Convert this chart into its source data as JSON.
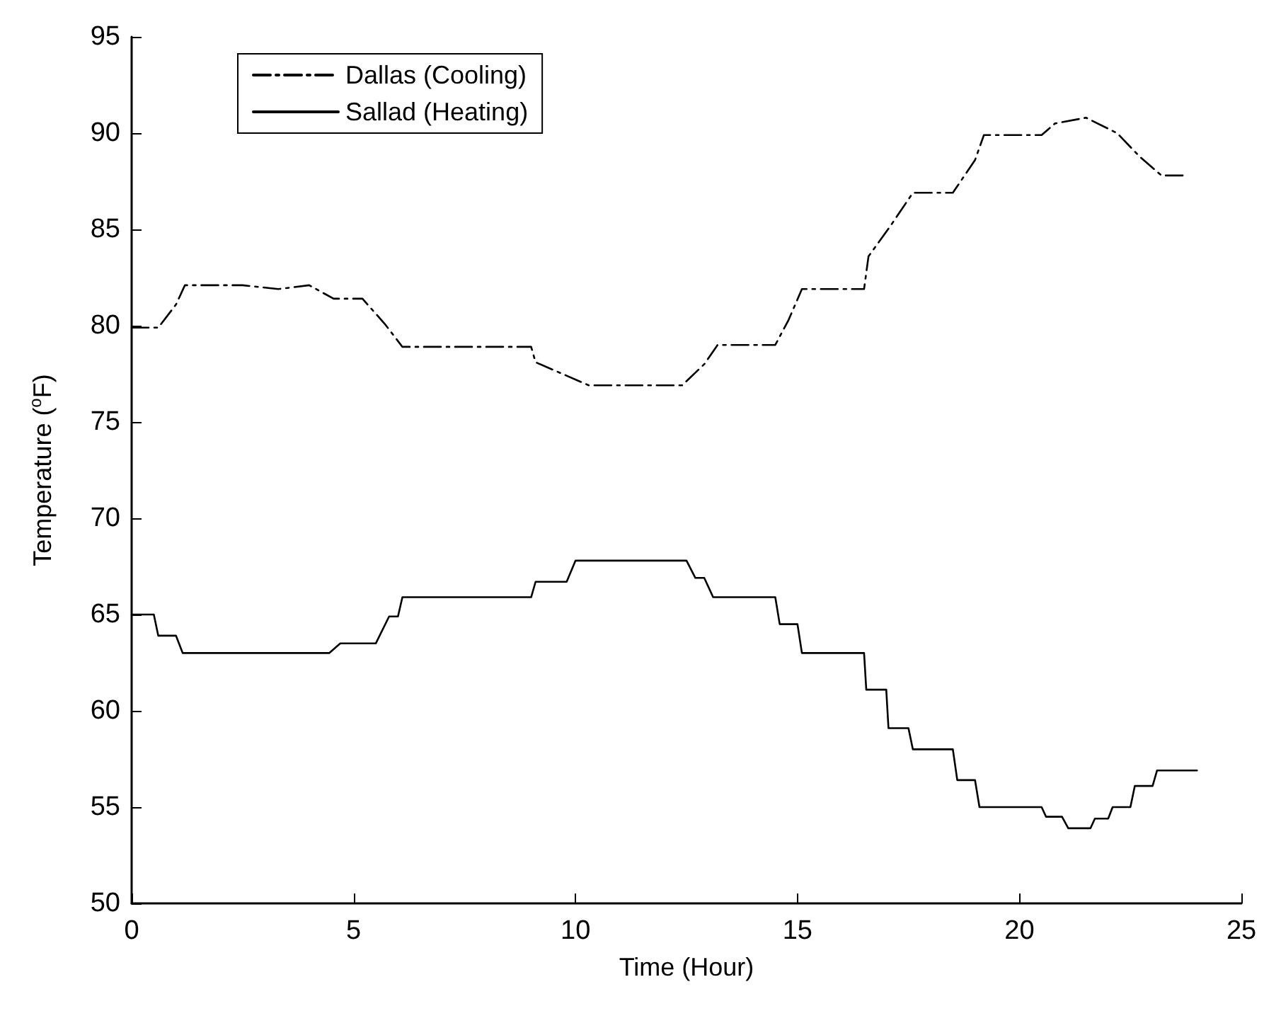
{
  "chart_data": {
    "type": "line",
    "xlabel": "Time (Hour)",
    "ylabel": "Temperature ($^{o}$F)",
    "xlim": [
      0,
      25
    ],
    "xticks": [
      0,
      5,
      10,
      15,
      20,
      25
    ],
    "ylim": [
      50,
      95
    ],
    "yticks": [
      50,
      55,
      60,
      65,
      70,
      75,
      80,
      85,
      90,
      95
    ],
    "legend": "top left",
    "grid": false,
    "marker": "none",
    "series": [
      {
        "name": "Dallas (Cooling)",
        "color": "#000000",
        "line_style": "dashed",
        "x": [
          0,
          0.6,
          1.0,
          1.2,
          2.5,
          3.3,
          4.0,
          4.55,
          5.2,
          5.7,
          6.1,
          7.5,
          9.0,
          9.1,
          9.7,
          10.3,
          11.5,
          12.4,
          12.9,
          13.2,
          14.5,
          14.8,
          15.1,
          16.5,
          16.6,
          17.1,
          17.6,
          18.5,
          19.0,
          19.2,
          20.5,
          20.8,
          21.5,
          22.2,
          22.7,
          23.2,
          23.8
        ],
        "values": [
          79.9,
          79.9,
          81.1,
          82.1,
          82.1,
          81.9,
          82.1,
          81.4,
          81.4,
          80.1,
          78.9,
          78.9,
          78.9,
          78.1,
          77.5,
          76.9,
          76.9,
          76.9,
          78.0,
          79.0,
          79.0,
          80.3,
          81.9,
          81.9,
          83.6,
          85.2,
          86.9,
          86.9,
          88.6,
          89.9,
          89.9,
          90.5,
          90.8,
          90.0,
          88.8,
          87.8,
          87.8
        ]
      },
      {
        "name": "Sallad (Heating)",
        "color": "#000000",
        "line_style": "solid",
        "x": [
          0,
          0.5,
          0.6,
          1.0,
          1.15,
          2.5,
          4.45,
          4.7,
          5.5,
          5.8,
          6.0,
          6.1,
          7.5,
          9.0,
          9.1,
          9.8,
          10.0,
          11.0,
          12.5,
          12.7,
          12.9,
          13.1,
          14.5,
          14.6,
          15.0,
          15.1,
          16.5,
          16.55,
          17.0,
          17.05,
          17.5,
          17.6,
          18.5,
          18.6,
          19.0,
          19.1,
          20.5,
          20.6,
          20.96,
          21.1,
          21.6,
          21.7,
          22.0,
          22.1,
          22.5,
          22.6,
          23.0,
          23.1,
          24.0
        ],
        "values": [
          65.0,
          65.0,
          63.9,
          63.9,
          63.0,
          63.0,
          63.0,
          63.5,
          63.5,
          64.9,
          64.9,
          65.9,
          65.9,
          65.9,
          66.7,
          66.7,
          67.8,
          67.8,
          67.8,
          66.9,
          66.9,
          65.9,
          65.9,
          64.5,
          64.5,
          63.0,
          63.0,
          61.1,
          61.1,
          59.1,
          59.1,
          58.0,
          58.0,
          56.4,
          56.4,
          55.0,
          55.0,
          54.5,
          54.5,
          53.9,
          53.9,
          54.4,
          54.4,
          55.0,
          55.0,
          56.1,
          56.1,
          56.9,
          56.9
        ]
      }
    ]
  }
}
